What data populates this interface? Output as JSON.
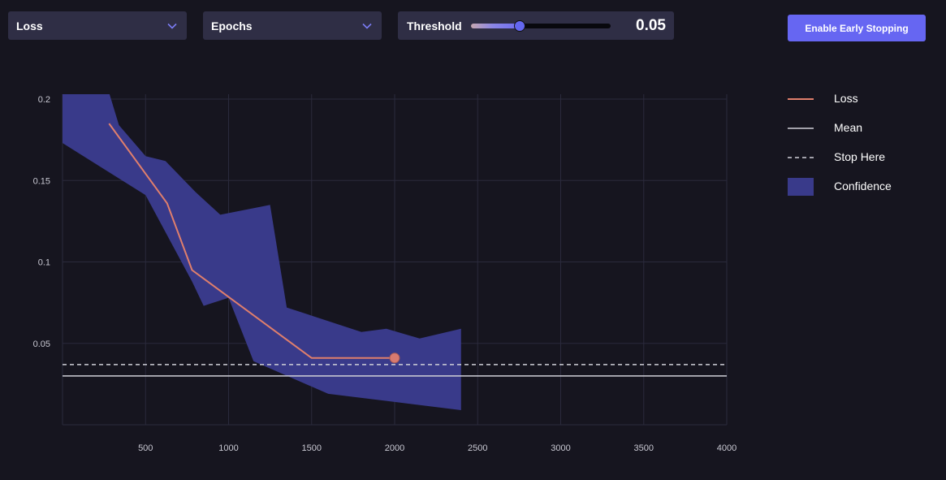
{
  "controls": {
    "metric_select": {
      "value": "Loss"
    },
    "xaxis_select": {
      "value": "Epochs"
    },
    "threshold": {
      "label": "Threshold",
      "value": "0.05",
      "fraction": 0.35
    },
    "early_stop_button": {
      "label": "Enable Early Stopping"
    }
  },
  "legend": {
    "loss": "Loss",
    "mean": "Mean",
    "stop": "Stop Here",
    "confidence": "Confidence"
  },
  "colors": {
    "background": "#16151f",
    "panel": "#2f2e45",
    "accent": "#6666f2",
    "loss_line": "#e07f6c",
    "confidence_band": "#393a8a",
    "mean_line": "#d0d0d8",
    "stop_line": "#d0d0d8",
    "grid": "#2a2a3c",
    "tick_text": "#c8c8d2"
  },
  "icons": {
    "dropdown": "chevron-down-icon"
  },
  "chart_data": {
    "type": "line",
    "title": "",
    "xlabel": "",
    "ylabel": "",
    "xlim": [
      0,
      4000
    ],
    "ylim": [
      0,
      0.2
    ],
    "x_ticks": [
      500,
      1000,
      1500,
      2000,
      2500,
      3000,
      3500,
      4000
    ],
    "y_ticks": [
      0.05,
      0.1,
      0.15,
      0.2
    ],
    "grid": true,
    "legend_position": "right",
    "series": [
      {
        "name": "Loss",
        "x": [
          280,
          630,
          780,
          1500,
          2000
        ],
        "y": [
          0.185,
          0.136,
          0.095,
          0.041,
          0.041
        ],
        "end_marker": true
      }
    ],
    "confidence": {
      "name": "Confidence",
      "upper": [
        [
          0,
          0.204
        ],
        [
          280,
          0.204
        ],
        [
          340,
          0.184
        ],
        [
          500,
          0.165
        ],
        [
          620,
          0.162
        ],
        [
          800,
          0.143
        ],
        [
          950,
          0.129
        ],
        [
          1250,
          0.135
        ],
        [
          1350,
          0.072
        ],
        [
          1800,
          0.057
        ],
        [
          1950,
          0.059
        ],
        [
          2150,
          0.053
        ],
        [
          2400,
          0.059
        ]
      ],
      "lower": [
        [
          2400,
          0.009
        ],
        [
          2000,
          0.014
        ],
        [
          1600,
          0.019
        ],
        [
          1150,
          0.039
        ],
        [
          1000,
          0.078
        ],
        [
          850,
          0.073
        ],
        [
          780,
          0.088
        ],
        [
          500,
          0.141
        ],
        [
          0,
          0.173
        ]
      ]
    },
    "mean": {
      "name": "Mean",
      "y": 0.03
    },
    "stop": {
      "name": "Stop Here",
      "y": 0.037
    }
  }
}
